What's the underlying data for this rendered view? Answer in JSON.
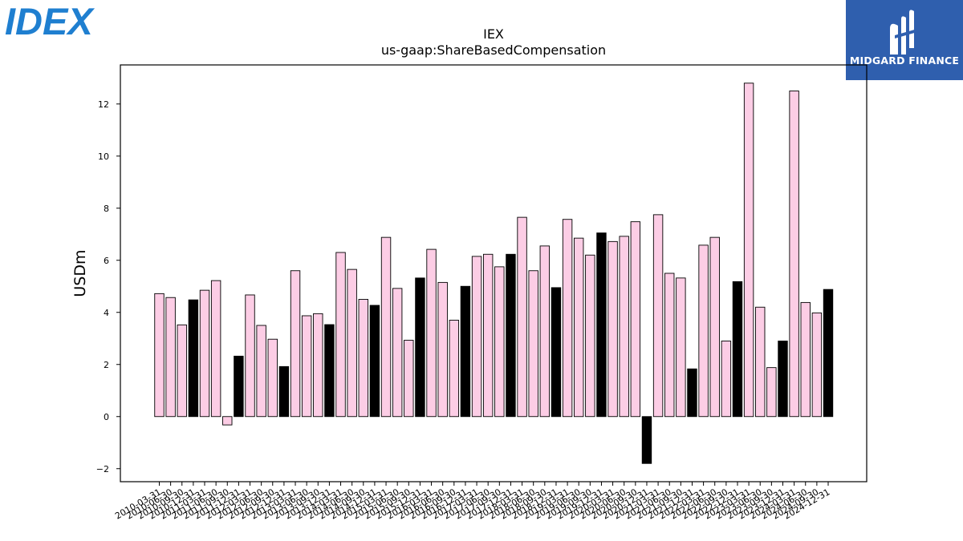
{
  "brand": {
    "left_logo_text": "IDEX",
    "right_logo_text": "MIDGARD FINANCE",
    "left_color": "#1f7fd0",
    "right_bg_color": "#2f5fae"
  },
  "chart_data": {
    "type": "bar",
    "title": "IEX",
    "subtitle": "us-gaap:ShareBasedCompensation",
    "xlabel": "",
    "ylabel": "USDm",
    "ylim": [
      -2.5,
      13.5
    ],
    "yticks": [
      -2,
      0,
      2,
      4,
      6,
      8,
      10,
      12
    ],
    "ytick_labels": [
      "−2",
      "0",
      "2",
      "4",
      "6",
      "8",
      "10",
      "12"
    ],
    "grid": false,
    "colors": {
      "quarter": "#fccde5",
      "annual": "#000000",
      "edge": "#000000"
    },
    "categories": [
      "2010-03-31",
      "2010-06-30",
      "2010-09-30",
      "2010-12-31",
      "2011-03-31",
      "2011-06-30",
      "2011-09-30",
      "2011-12-31",
      "2012-03-31",
      "2012-06-30",
      "2012-09-30",
      "2012-12-31",
      "2013-03-31",
      "2013-06-30",
      "2013-09-30",
      "2013-12-31",
      "2014-03-31",
      "2014-06-30",
      "2014-09-30",
      "2014-12-31",
      "2015-03-31",
      "2015-06-30",
      "2015-09-30",
      "2015-12-31",
      "2016-03-31",
      "2016-06-30",
      "2016-09-30",
      "2016-12-31",
      "2017-03-31",
      "2017-06-30",
      "2017-09-30",
      "2017-12-31",
      "2018-03-31",
      "2018-06-30",
      "2018-09-30",
      "2018-12-31",
      "2019-03-31",
      "2019-06-30",
      "2019-09-30",
      "2019-12-31",
      "2020-03-31",
      "2020-06-30",
      "2020-09-30",
      "2020-12-31",
      "2021-03-31",
      "2021-06-30",
      "2021-09-30",
      "2021-12-31",
      "2022-03-31",
      "2022-06-30",
      "2022-09-30",
      "2022-12-31",
      "2023-03-31",
      "2023-06-30",
      "2023-09-30",
      "2023-12-31",
      "2024-03-31",
      "2024-06-30",
      "2024-09-30",
      "2024-12-31"
    ],
    "tick_labels": [
      "2010-03-31",
      "2010-06-30",
      "2010-09-30",
      "2010-12-31",
      "2011-03-31",
      "2011-06-30",
      "2011-09-30",
      "2011-12-31",
      "2012-03-31",
      "2012-06-30",
      "2012-09-30",
      "2012-12-31",
      "2013-03-31",
      "2013-06-30",
      "2013-09-30",
      "2013-12-31",
      "2014-03-31",
      "2014-06-30",
      "2014-09-30",
      "2014-12-31",
      "2015-03-31",
      "2015-06-30",
      "2015-09-30",
      "2015-12-31",
      "2016-03-31",
      "2016-06-30",
      "2016-09-30",
      "2016-12-31",
      "2017-03-31",
      "2017-06-30",
      "2017-09-30",
      "2017-12-31",
      "2018-03-31",
      "2018-06-30",
      "2018-09-30",
      "2018-12-31",
      "2019-03-31",
      "2019-06-30",
      "2019-09-30",
      "2019-12-31",
      "2020-03-31",
      "2020-06-30",
      "2020-09-30",
      "2020-12-31",
      "2021-03-31",
      "2021-06-30",
      "2021-09-30",
      "2021-12-31",
      "2022-03-31",
      "2022-06-30",
      "2022-09-30",
      "2022-12-31",
      "2023-03-31",
      "2023-06-30",
      "2023-09-30",
      "2023-12-31",
      "2024-03-31",
      "2024-06-30",
      "2024-09-30",
      "2024-12-31"
    ],
    "values": [
      4.72,
      4.57,
      3.52,
      4.48,
      4.85,
      5.22,
      -0.32,
      2.32,
      4.67,
      3.5,
      2.97,
      1.92,
      5.6,
      3.87,
      3.95,
      3.53,
      6.3,
      5.65,
      4.5,
      4.27,
      6.88,
      4.92,
      2.93,
      5.32,
      6.42,
      5.15,
      3.7,
      5.0,
      6.15,
      6.23,
      5.75,
      6.23,
      7.65,
      5.6,
      6.55,
      4.95,
      7.57,
      6.85,
      6.2,
      7.05,
      6.72,
      6.92,
      7.48,
      -1.8,
      7.75,
      5.5,
      5.32,
      1.83,
      6.58,
      6.88,
      2.9,
      5.18,
      12.8,
      4.2,
      1.88,
      2.9,
      12.5,
      4.38,
      3.98,
      4.88
    ],
    "is_annual": [
      false,
      false,
      false,
      true,
      false,
      false,
      false,
      true,
      false,
      false,
      false,
      true,
      false,
      false,
      false,
      true,
      false,
      false,
      false,
      true,
      false,
      false,
      false,
      true,
      false,
      false,
      false,
      true,
      false,
      false,
      false,
      true,
      false,
      false,
      false,
      true,
      false,
      false,
      false,
      true,
      false,
      false,
      false,
      true,
      false,
      false,
      false,
      true,
      false,
      false,
      false,
      true,
      false,
      false,
      false,
      true,
      false,
      false,
      false,
      true
    ]
  }
}
